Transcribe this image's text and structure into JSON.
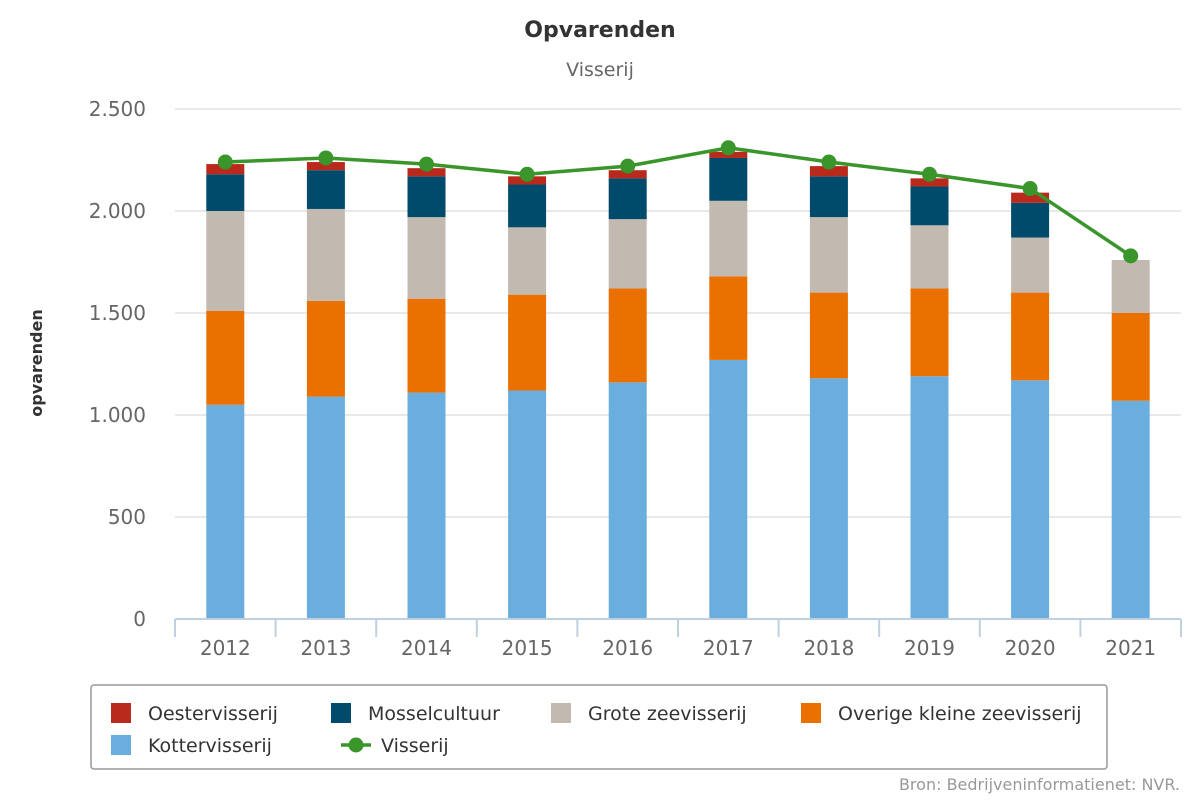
{
  "chart_data": {
    "type": "bar",
    "title": "Opvarenden",
    "subtitle": "Visserij",
    "xlabel": "",
    "ylabel": "opvarenden",
    "ylim": [
      0,
      2500
    ],
    "yticks": [
      0,
      500,
      1000,
      1500,
      2000,
      2500
    ],
    "ytick_labels": [
      "0",
      "500",
      "1.000",
      "1.500",
      "2.000",
      "2.500"
    ],
    "categories": [
      "2012",
      "2013",
      "2014",
      "2015",
      "2016",
      "2017",
      "2018",
      "2019",
      "2020",
      "2021"
    ],
    "stacked": true,
    "grid": true,
    "series": [
      {
        "name": "Kottervisserij",
        "type": "bar",
        "color": "#6aaee0",
        "values": [
          1050,
          1090,
          1110,
          1120,
          1160,
          1270,
          1180,
          1190,
          1170,
          1070
        ]
      },
      {
        "name": "Overige kleine zeevisserij",
        "type": "bar",
        "color": "#ea7100",
        "values": [
          460,
          470,
          460,
          470,
          460,
          410,
          420,
          430,
          430,
          430
        ]
      },
      {
        "name": "Grote zeevisserij",
        "type": "bar",
        "color": "#c2bab0",
        "values": [
          490,
          450,
          400,
          330,
          340,
          370,
          370,
          310,
          270,
          260
        ]
      },
      {
        "name": "Mosselcultuur",
        "type": "bar",
        "color": "#004a6b",
        "values": [
          180,
          190,
          200,
          210,
          200,
          210,
          200,
          190,
          170,
          0
        ]
      },
      {
        "name": "Oestervisserij",
        "type": "bar",
        "color": "#b92a1c",
        "values": [
          50,
          40,
          40,
          40,
          40,
          30,
          50,
          40,
          50,
          0
        ]
      },
      {
        "name": "Visserij",
        "type": "line",
        "color": "#3a962b",
        "values": [
          2240,
          2260,
          2230,
          2180,
          2220,
          2310,
          2240,
          2180,
          2110,
          1780
        ]
      }
    ],
    "legend": {
      "position": "bottom",
      "order": [
        "Oestervisserij",
        "Mosselcultuur",
        "Grote zeevisserij",
        "Overige kleine zeevisserij",
        "Kottervisserij",
        "Visserij"
      ]
    }
  },
  "credit": "Bron: Bedrijveninformatienet: NVR."
}
